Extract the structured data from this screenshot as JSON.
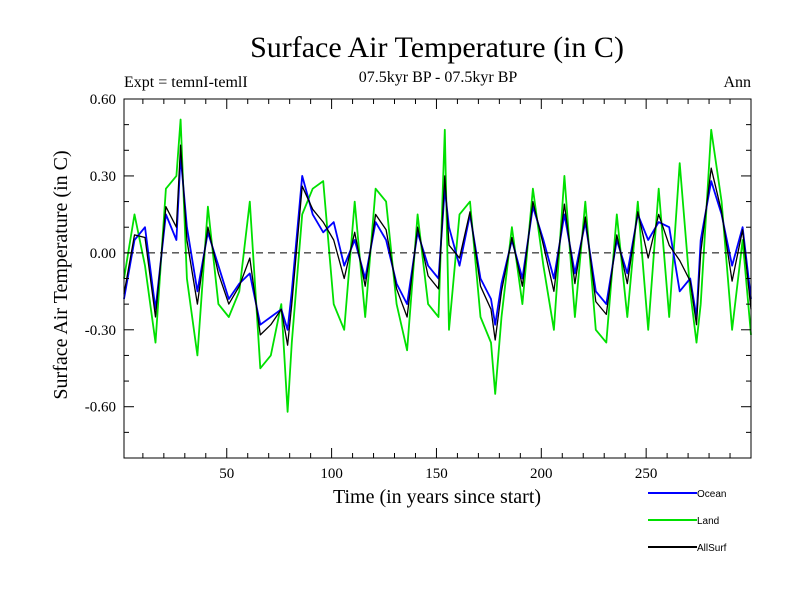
{
  "chart_data": {
    "type": "line",
    "title": "Surface Air Temperature (in C)",
    "subtitle": "07.5kyr BP - 07.5kyr BP",
    "expt_label": "Expt = temnI-temlI",
    "season_label": "Ann",
    "xlabel": "Time (in years since start)",
    "ylabel": "Surface Air Temperature (in C)",
    "xlim": [
      1,
      300
    ],
    "ylim": [
      -0.8,
      0.6
    ],
    "x_ticks": [
      50,
      100,
      150,
      200,
      250
    ],
    "x_tick_labels": [
      "50",
      "100",
      "150",
      "200",
      "250"
    ],
    "y_ticks": [
      -0.6,
      -0.3,
      0.0,
      0.3,
      0.6
    ],
    "y_tick_labels": [
      "-0.60",
      "-0.30",
      "0.00",
      "0.30",
      "0.60"
    ],
    "reference_line": 0.0,
    "series_x": [
      1,
      6,
      11,
      16,
      21,
      26,
      28,
      31,
      36,
      41,
      46,
      51,
      56,
      61,
      66,
      71,
      76,
      79,
      81,
      86,
      91,
      96,
      101,
      106,
      111,
      116,
      121,
      126,
      131,
      136,
      141,
      146,
      151,
      154,
      156,
      161,
      166,
      171,
      176,
      178,
      181,
      186,
      191,
      196,
      201,
      206,
      211,
      216,
      221,
      226,
      231,
      236,
      241,
      246,
      251,
      256,
      261,
      266,
      271,
      274,
      276,
      281,
      286,
      291,
      296,
      300
    ],
    "series": [
      {
        "name": "Ocean",
        "color": "#0000ff",
        "values": [
          -0.18,
          0.05,
          0.1,
          -0.22,
          0.15,
          0.05,
          0.38,
          0.1,
          -0.15,
          0.08,
          -0.05,
          -0.18,
          -0.12,
          -0.08,
          -0.28,
          -0.25,
          -0.22,
          -0.3,
          -0.15,
          0.3,
          0.15,
          0.08,
          0.12,
          -0.05,
          0.05,
          -0.1,
          0.12,
          0.05,
          -0.12,
          -0.2,
          0.08,
          -0.05,
          -0.1,
          0.25,
          0.1,
          -0.05,
          0.15,
          -0.1,
          -0.18,
          -0.28,
          -0.12,
          0.05,
          -0.1,
          0.18,
          0.05,
          -0.1,
          0.15,
          -0.08,
          0.12,
          -0.15,
          -0.2,
          0.05,
          -0.08,
          0.15,
          0.05,
          0.12,
          0.1,
          -0.15,
          -0.1,
          -0.25,
          0.05,
          0.28,
          0.15,
          -0.05,
          0.1,
          -0.18
        ]
      },
      {
        "name": "Land",
        "color": "#00e000",
        "values": [
          -0.1,
          0.15,
          -0.05,
          -0.35,
          0.25,
          0.3,
          0.52,
          -0.1,
          -0.4,
          0.18,
          -0.2,
          -0.25,
          -0.15,
          0.2,
          -0.45,
          -0.4,
          -0.2,
          -0.62,
          -0.35,
          0.15,
          0.25,
          0.28,
          -0.2,
          -0.3,
          0.2,
          -0.25,
          0.25,
          0.2,
          -0.2,
          -0.38,
          0.15,
          -0.2,
          -0.25,
          0.48,
          -0.3,
          0.15,
          0.2,
          -0.25,
          -0.35,
          -0.55,
          -0.25,
          0.1,
          -0.2,
          0.25,
          -0.05,
          -0.3,
          0.3,
          -0.25,
          0.2,
          -0.3,
          -0.35,
          0.15,
          -0.25,
          0.2,
          -0.3,
          0.25,
          -0.25,
          0.35,
          -0.15,
          -0.35,
          -0.2,
          0.48,
          0.2,
          -0.3,
          0.05,
          -0.32
        ]
      },
      {
        "name": "AllSurf",
        "color": "#000000",
        "values": [
          -0.16,
          0.07,
          0.06,
          -0.25,
          0.18,
          0.1,
          0.42,
          0.05,
          -0.2,
          0.1,
          -0.08,
          -0.2,
          -0.13,
          -0.02,
          -0.32,
          -0.28,
          -0.22,
          -0.36,
          -0.2,
          0.26,
          0.17,
          0.12,
          0.05,
          -0.1,
          0.08,
          -0.13,
          0.15,
          0.09,
          -0.14,
          -0.25,
          0.1,
          -0.09,
          -0.14,
          0.3,
          0.03,
          -0.02,
          0.16,
          -0.13,
          -0.22,
          -0.34,
          -0.15,
          0.06,
          -0.13,
          0.2,
          0.03,
          -0.15,
          0.19,
          -0.12,
          0.14,
          -0.19,
          -0.24,
          0.07,
          -0.12,
          0.16,
          -0.02,
          0.15,
          0.03,
          -0.03,
          -0.11,
          -0.28,
          0.0,
          0.33,
          0.16,
          -0.11,
          0.09,
          -0.22
        ]
      }
    ],
    "legend": [
      {
        "label": "Ocean",
        "color": "#0000ff"
      },
      {
        "label": "Land",
        "color": "#00e000"
      },
      {
        "label": "AllSurf",
        "color": "#000000"
      }
    ]
  }
}
